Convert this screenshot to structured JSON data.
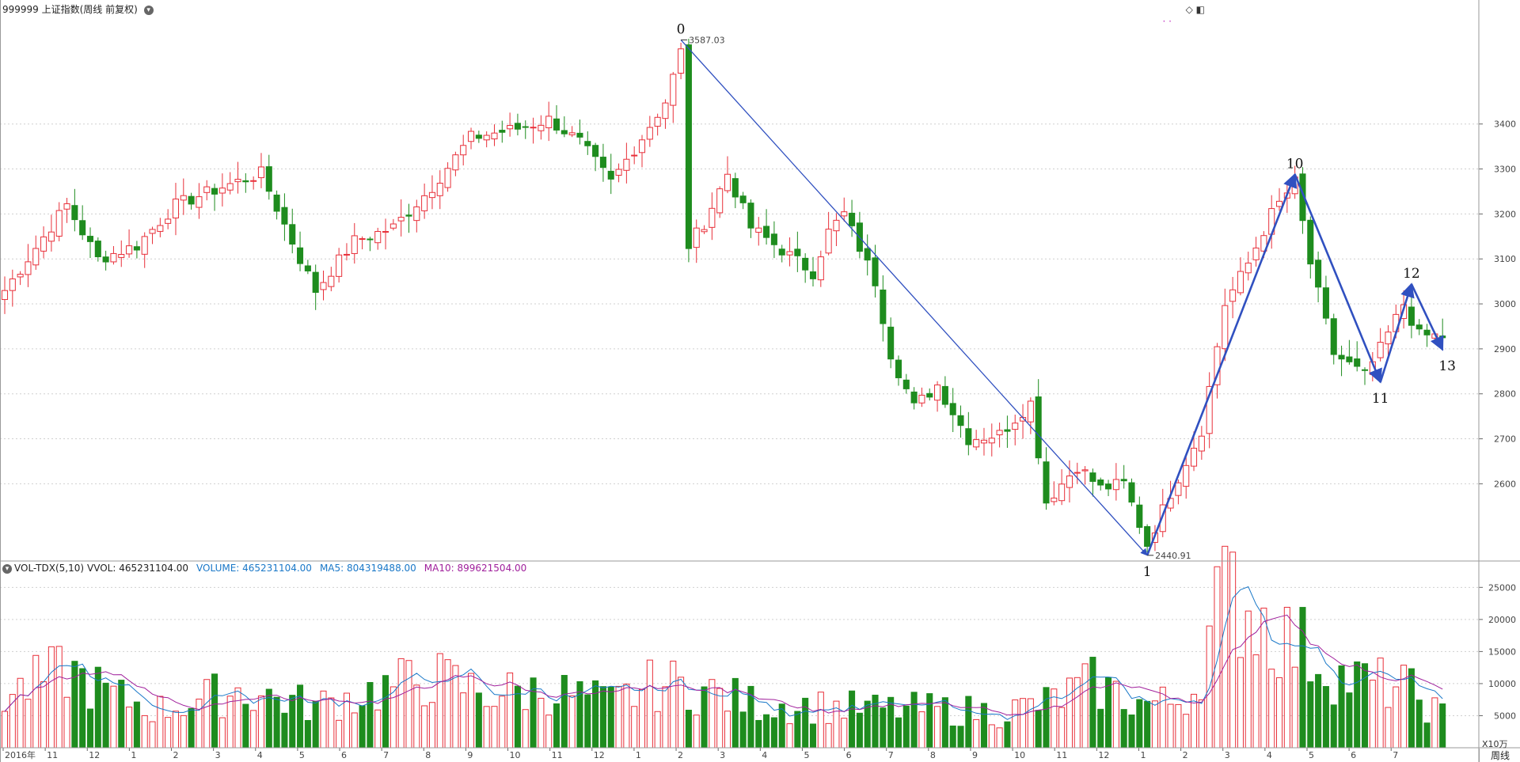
{
  "header": {
    "title": "999999 上证指数(周线 前复权)",
    "menu_icon": "chevron-down-icon"
  },
  "toolbar": {
    "icons": [
      "diamond-icon",
      "window-icon"
    ],
    "dots": "· ·"
  },
  "volume_legend": {
    "name": "VOL-TDX(5,10)",
    "vvol": "VVOL: 465231104.00",
    "volume": "VOLUME: 465231104.00",
    "ma5": "MA5: 804319488.00",
    "ma10": "MA10: 899621504.00",
    "unit": "X10万"
  },
  "period_button": "周线",
  "colors": {
    "up": "#e8303a",
    "down": "#1e8c1e",
    "wave": "#3050c0",
    "ma5": "#1a78c8",
    "ma10": "#a0209c",
    "grid": "#cfcfcf",
    "border": "#9a9a9a"
  },
  "chart_data": [
    {
      "type": "candlestick",
      "title": "999999 上证指数(周线 前复权)",
      "x_axis_labels": [
        "2016年",
        "11",
        "12",
        "1",
        "2",
        "3",
        "4",
        "5",
        "6",
        "7",
        "8",
        "9",
        "10",
        "11",
        "12",
        "1",
        "2",
        "3",
        "4",
        "5",
        "6",
        "7",
        "8",
        "9",
        "10",
        "11",
        "12",
        "1",
        "2",
        "3",
        "4",
        "5",
        "6",
        "7"
      ],
      "y_ticks": [
        2600,
        2700,
        2800,
        2900,
        3000,
        3100,
        3200,
        3300,
        3400
      ],
      "ylim": [
        2430,
        3630
      ],
      "annotations": [
        {
          "label": "3587.03",
          "value": 3587.03
        },
        {
          "label": "2440.91",
          "value": 2440.91
        }
      ],
      "wave_points": [
        {
          "label": "0",
          "week": 87,
          "value": 3587.03
        },
        {
          "label": "1",
          "week": 147,
          "value": 2440.91
        },
        {
          "label": "10",
          "week": 166,
          "value": 3288
        },
        {
          "label": "11",
          "week": 177,
          "value": 2826
        },
        {
          "label": "12",
          "week": 181,
          "value": 3044
        },
        {
          "label": "13",
          "week": 185,
          "value": 2898
        }
      ],
      "weeks": 186,
      "close_anchors": [
        [
          0,
          3030
        ],
        [
          8,
          3220
        ],
        [
          12,
          3100
        ],
        [
          17,
          3130
        ],
        [
          22,
          3220
        ],
        [
          28,
          3260
        ],
        [
          33,
          3290
        ],
        [
          38,
          3100
        ],
        [
          40,
          3030
        ],
        [
          45,
          3140
        ],
        [
          50,
          3170
        ],
        [
          55,
          3260
        ],
        [
          60,
          3370
        ],
        [
          66,
          3390
        ],
        [
          70,
          3410
        ],
        [
          74,
          3360
        ],
        [
          78,
          3270
        ],
        [
          82,
          3370
        ],
        [
          85,
          3450
        ],
        [
          87,
          3560
        ],
        [
          88,
          3130
        ],
        [
          90,
          3180
        ],
        [
          93,
          3290
        ],
        [
          96,
          3170
        ],
        [
          100,
          3120
        ],
        [
          104,
          3070
        ],
        [
          106,
          3160
        ],
        [
          108,
          3200
        ],
        [
          112,
          3050
        ],
        [
          114,
          2890
        ],
        [
          117,
          2770
        ],
        [
          120,
          2820
        ],
        [
          124,
          2700
        ],
        [
          128,
          2710
        ],
        [
          132,
          2780
        ],
        [
          134,
          2560
        ],
        [
          138,
          2640
        ],
        [
          141,
          2590
        ],
        [
          144,
          2600
        ],
        [
          147,
          2465
        ],
        [
          150,
          2580
        ],
        [
          154,
          2720
        ],
        [
          157,
          3000
        ],
        [
          160,
          3090
        ],
        [
          163,
          3200
        ],
        [
          166,
          3270
        ],
        [
          168,
          3090
        ],
        [
          171,
          2890
        ],
        [
          175,
          2840
        ],
        [
          177,
          2900
        ],
        [
          180,
          3000
        ],
        [
          182,
          2930
        ],
        [
          185,
          2928
        ]
      ]
    },
    {
      "type": "bar",
      "title": "VOL-TDX(5,10)",
      "series": [
        {
          "name": "VOLUME",
          "last": 465231104.0
        },
        {
          "name": "MA5",
          "last": 804319488.0
        },
        {
          "name": "MA10",
          "last": 899621504.0
        }
      ],
      "y_ticks": [
        5000,
        10000,
        15000,
        20000,
        25000
      ],
      "ylim": [
        0,
        28000
      ],
      "unit": "X10万",
      "volume_anchors": [
        [
          0,
          8000
        ],
        [
          8,
          12000
        ],
        [
          14,
          8000
        ],
        [
          20,
          6000
        ],
        [
          30,
          9000
        ],
        [
          40,
          6500
        ],
        [
          48,
          9000
        ],
        [
          55,
          11000
        ],
        [
          62,
          8500
        ],
        [
          70,
          9000
        ],
        [
          78,
          7000
        ],
        [
          84,
          10000
        ],
        [
          88,
          9500
        ],
        [
          96,
          7000
        ],
        [
          104,
          6500
        ],
        [
          112,
          6000
        ],
        [
          120,
          6000
        ],
        [
          128,
          5500
        ],
        [
          134,
          7000
        ],
        [
          140,
          10000
        ],
        [
          146,
          7000
        ],
        [
          150,
          7000
        ],
        [
          153,
          9000
        ],
        [
          156,
          22000
        ],
        [
          158,
          24000
        ],
        [
          162,
          20000
        ],
        [
          165,
          17000
        ],
        [
          168,
          15000
        ],
        [
          172,
          11000
        ],
        [
          176,
          10000
        ],
        [
          180,
          9500
        ],
        [
          185,
          5000
        ]
      ]
    }
  ]
}
